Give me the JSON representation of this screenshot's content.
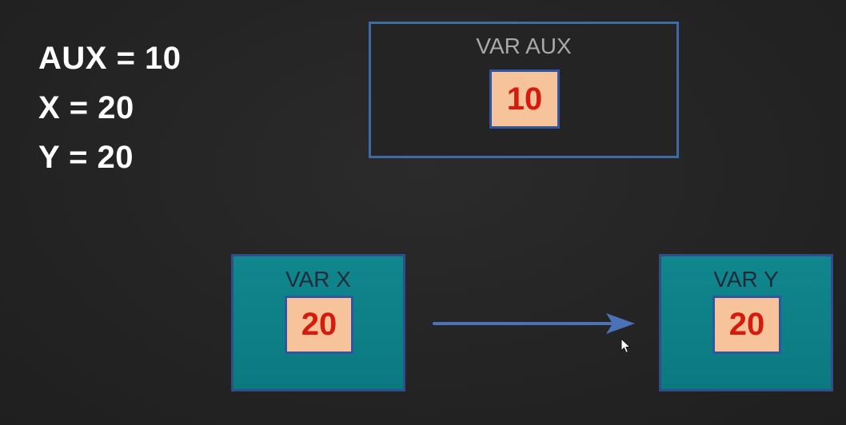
{
  "assignments": [
    {
      "text": "AUX = 10"
    },
    {
      "text": "X = 20"
    },
    {
      "text": "Y = 20"
    }
  ],
  "boxes": {
    "aux": {
      "label": "VAR AUX",
      "value": "10"
    },
    "x": {
      "label": "VAR X",
      "value": "20"
    },
    "y": {
      "label": "VAR Y",
      "value": "20"
    }
  },
  "arrow": {
    "icon": "right-arrow-icon",
    "color": "#4a72b8"
  },
  "cursor": {
    "icon": "mouse-pointer-icon"
  },
  "colors": {
    "background": "#242424",
    "teal": "#0e8087",
    "cell": "#f6c39b",
    "value_text": "#d71a0e",
    "border_blue": "#3f6aa6"
  }
}
